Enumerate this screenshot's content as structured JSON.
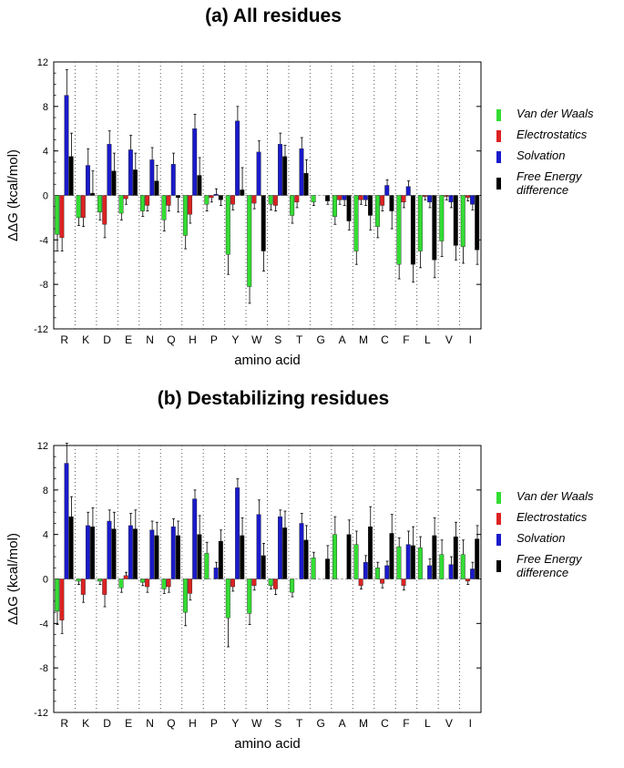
{
  "colors": {
    "vdw": "#33dd33",
    "electrostatics": "#dd2222",
    "solvation": "#1a1acc",
    "free_energy": "#000000"
  },
  "chart_data": [
    {
      "type": "bar",
      "title": "(a)  All residues",
      "xlabel": "amino acid",
      "ylabel": "ΔΔG (kcal/mol)",
      "ylim": [
        -12,
        12
      ],
      "yticks": [
        -12,
        -8,
        -4,
        0,
        4,
        8,
        12
      ],
      "grid": "vertical dotted separators between amino acids",
      "legend_position": "right",
      "categories": [
        "R",
        "K",
        "D",
        "E",
        "N",
        "Q",
        "H",
        "P",
        "Y",
        "W",
        "S",
        "T",
        "G",
        "A",
        "M",
        "C",
        "F",
        "L",
        "V",
        "I"
      ],
      "series": [
        {
          "name": "Van der Waals",
          "color_key": "vdw",
          "values": [
            -3.5,
            -2.0,
            -1.5,
            -1.6,
            -1.4,
            -2.2,
            -3.6,
            -0.8,
            -5.3,
            -8.2,
            -0.8,
            -1.8,
            -0.6,
            -1.9,
            -5.0,
            -2.8,
            -6.2,
            -5.0,
            -4.1,
            -4.6
          ],
          "errors": [
            1.5,
            0.7,
            0.7,
            0.6,
            0.5,
            1.0,
            1.2,
            0.6,
            1.8,
            1.5,
            0.5,
            0.7,
            0.3,
            0.7,
            1.2,
            1.0,
            1.3,
            1.5,
            1.4,
            1.5
          ]
        },
        {
          "name": "Electrostatics",
          "color_key": "electrostatics",
          "values": [
            -3.8,
            -2.0,
            -2.6,
            -0.3,
            -0.9,
            -0.9,
            -1.7,
            -0.2,
            -0.8,
            -0.7,
            -0.9,
            -0.6,
            0,
            -0.4,
            -0.4,
            -0.9,
            -0.6,
            -0.1,
            -0.1,
            -0.2
          ],
          "errors": [
            1.2,
            0.8,
            1.2,
            0.5,
            0.5,
            0.5,
            0.8,
            0.4,
            0.5,
            0.5,
            0.5,
            0.5,
            0,
            0.4,
            0.4,
            0.5,
            0.5,
            0.3,
            0.3,
            0.3
          ]
        },
        {
          "name": "Solvation",
          "color_key": "solvation",
          "values": [
            9.0,
            2.7,
            4.6,
            4.1,
            3.2,
            2.8,
            6.0,
            0.1,
            6.7,
            3.9,
            4.6,
            4.2,
            0,
            -0.4,
            -0.4,
            0.9,
            0.8,
            -0.6,
            -0.6,
            -0.8
          ],
          "errors": [
            2.3,
            1.5,
            1.2,
            1.3,
            1.1,
            1.0,
            1.3,
            0.5,
            1.3,
            1.0,
            1.0,
            1.0,
            0,
            0.5,
            0.5,
            0.5,
            0.5,
            0.5,
            0.5,
            0.5
          ]
        },
        {
          "name": "Free Energy difference",
          "color_key": "free_energy",
          "values": [
            3.5,
            0.2,
            2.2,
            2.3,
            1.3,
            -0.2,
            1.8,
            -0.4,
            0.5,
            -5.0,
            3.5,
            2.0,
            -0.5,
            -2.3,
            -1.8,
            -1.4,
            -6.2,
            -5.8,
            -4.5,
            -4.9
          ],
          "errors": [
            2.1,
            2.0,
            1.6,
            1.5,
            1.4,
            1.3,
            1.6,
            0.5,
            2.0,
            1.8,
            1.0,
            1.2,
            0.3,
            0.8,
            1.3,
            1.6,
            1.6,
            1.6,
            1.3,
            1.3
          ]
        }
      ]
    },
    {
      "type": "bar",
      "title": "(b)  Destabilizing residues",
      "xlabel": "amino acid",
      "ylabel": "ΔΔG (kcal/mol)",
      "ylim": [
        -12,
        12
      ],
      "yticks": [
        -12,
        -8,
        -4,
        0,
        4,
        8,
        12
      ],
      "grid": "vertical dotted separators between amino acids",
      "legend_position": "right",
      "categories": [
        "R",
        "K",
        "D",
        "E",
        "N",
        "Q",
        "H",
        "P",
        "Y",
        "W",
        "S",
        "T",
        "G",
        "A",
        "M",
        "C",
        "F",
        "L",
        "V",
        "I"
      ],
      "series": [
        {
          "name": "Van der Waals",
          "color_key": "vdw",
          "values": [
            -2.9,
            -0.2,
            -0.2,
            -0.8,
            -0.3,
            -0.9,
            -3.0,
            2.3,
            -3.5,
            -3.1,
            -0.6,
            -1.2,
            1.9,
            4.0,
            3.1,
            1.0,
            2.9,
            2.8,
            2.2,
            2.2
          ],
          "errors": [
            1.2,
            0.3,
            0.3,
            0.4,
            0.3,
            0.4,
            1.2,
            1.0,
            2.6,
            1.0,
            0.3,
            0.4,
            0.5,
            1.6,
            1.2,
            0.5,
            0.8,
            1.0,
            1.3,
            1.3
          ]
        },
        {
          "name": "Electrostatics",
          "color_key": "electrostatics",
          "values": [
            -3.7,
            -1.4,
            -1.4,
            0.3,
            -0.7,
            -0.7,
            -1.3,
            0,
            -0.7,
            -0.6,
            -0.9,
            0,
            0,
            0,
            -0.6,
            -0.4,
            -0.6,
            0,
            0,
            -0.2
          ],
          "errors": [
            1.2,
            0.7,
            1.1,
            0.3,
            0.5,
            0.5,
            0.6,
            0,
            0.4,
            0.4,
            0.5,
            0,
            0,
            0,
            0.3,
            0.4,
            0.4,
            0,
            0,
            0.3
          ]
        },
        {
          "name": "Solvation",
          "color_key": "solvation",
          "values": [
            10.4,
            4.8,
            5.2,
            4.8,
            4.4,
            4.7,
            7.2,
            1.0,
            8.2,
            5.8,
            5.6,
            5.0,
            0,
            0,
            1.5,
            1.2,
            3.1,
            1.2,
            1.3,
            0.9
          ],
          "errors": [
            1.8,
            1.2,
            1.0,
            1.1,
            0.8,
            0.7,
            0.8,
            0.5,
            0.8,
            1.3,
            0.6,
            0.9,
            0,
            0,
            0.6,
            0.4,
            1.2,
            0.6,
            0.7,
            0.6
          ]
        },
        {
          "name": "Free Energy difference",
          "color_key": "free_energy",
          "values": [
            5.6,
            4.7,
            4.5,
            4.5,
            3.9,
            3.9,
            4.0,
            3.4,
            3.9,
            2.1,
            4.6,
            3.5,
            1.8,
            4.0,
            4.7,
            4.1,
            3.0,
            3.9,
            3.8,
            3.6
          ],
          "errors": [
            1.8,
            1.7,
            1.5,
            1.7,
            1.2,
            1.3,
            1.7,
            1.0,
            1.6,
            1.1,
            1.5,
            1.3,
            1.2,
            1.3,
            1.8,
            1.7,
            1.7,
            1.6,
            1.3,
            1.2
          ]
        }
      ]
    }
  ]
}
